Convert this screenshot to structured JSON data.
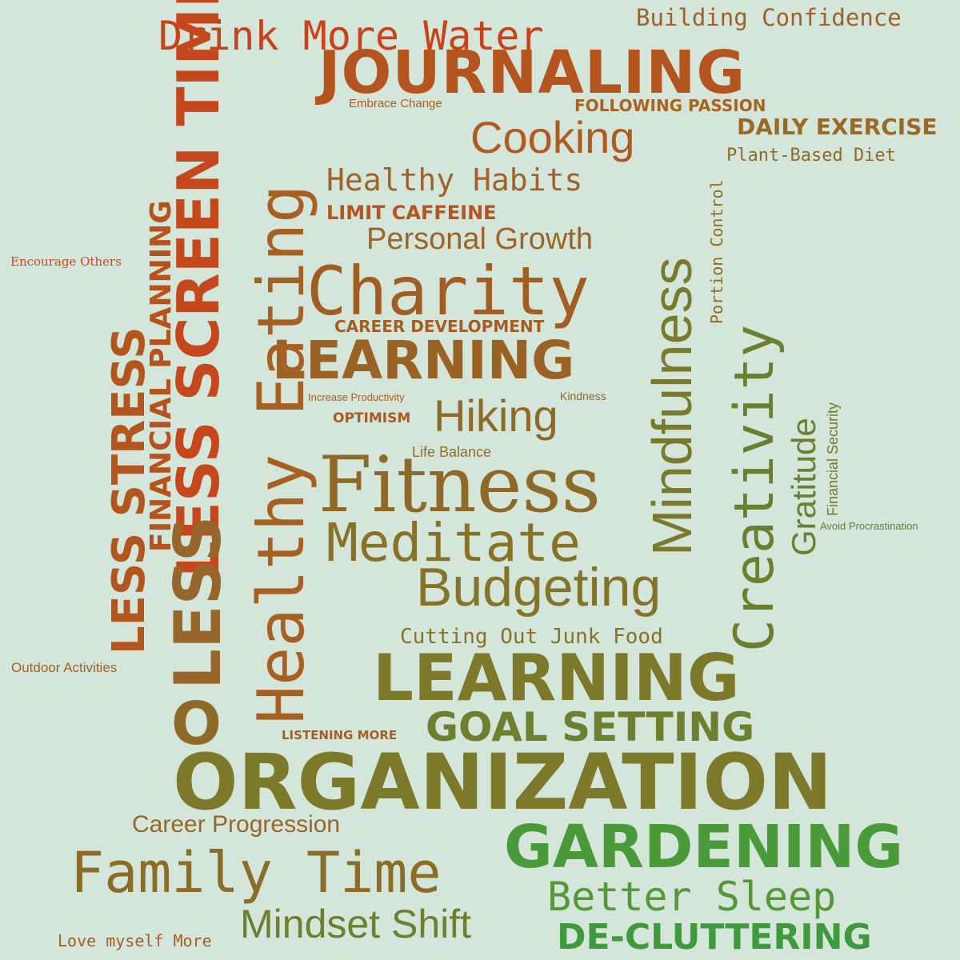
{
  "words": [
    {
      "text": "Building Confidence",
      "color": "#a0602a"
    },
    {
      "text": "Drink More Water",
      "color": "#c8421a"
    },
    {
      "text": "JOURNALING",
      "color": "#b4541e"
    },
    {
      "text": "Embrace Change",
      "color": "#b05a22"
    },
    {
      "text": "FOLLOWING PASSION",
      "color": "#a86222"
    },
    {
      "text": "Cooking",
      "color": "#b05a22"
    },
    {
      "text": "DAILY EXERCISE",
      "color": "#986a26"
    },
    {
      "text": "Plant-Based Diet",
      "color": "#8c6c2a"
    },
    {
      "text": "Healthy Habits",
      "color": "#a0622a"
    },
    {
      "text": "LIMIT CAFFEINE",
      "color": "#b4541e"
    },
    {
      "text": "Personal Growth",
      "color": "#9c6426"
    },
    {
      "text": "Encourage Others",
      "color": "#c84a1c"
    },
    {
      "text": "Charity",
      "color": "#a05e24"
    },
    {
      "text": "CAREER DEVELOPMENT",
      "color": "#a25e24"
    },
    {
      "text": "LEARNING",
      "color": "#9a6224"
    },
    {
      "text": "Increase Productivity",
      "color": "#a25e24"
    },
    {
      "text": "Kindness",
      "color": "#8e6a28"
    },
    {
      "text": "OPTIMISM",
      "color": "#a85a22"
    },
    {
      "text": "Hiking",
      "color": "#8e6a28"
    },
    {
      "text": "Life Balance",
      "color": "#927028"
    },
    {
      "text": "Fitness",
      "color": "#8e6a28"
    },
    {
      "text": "Meditate",
      "color": "#887228"
    },
    {
      "text": "Budgeting",
      "color": "#84742a"
    },
    {
      "text": "Cutting Out Junk Food",
      "color": "#84742a"
    },
    {
      "text": "Avoid Procrastination",
      "color": "#6a8030"
    },
    {
      "text": "Outdoor Activities",
      "color": "#a66222"
    },
    {
      "text": "LEARNING",
      "color": "#7c7a2a"
    },
    {
      "text": "LISTENING MORE",
      "color": "#a46022"
    },
    {
      "text": "GOAL SETTING",
      "color": "#6e8030"
    },
    {
      "text": "ORGANIZATION",
      "color": "#7c7a2a"
    },
    {
      "text": "Career Progression",
      "color": "#986626"
    },
    {
      "text": "GARDENING",
      "color": "#4a9a3a"
    },
    {
      "text": "Family Time",
      "color": "#8a6e28"
    },
    {
      "text": "Better Sleep",
      "color": "#54983a"
    },
    {
      "text": "Mindset Shift",
      "color": "#6e8030"
    },
    {
      "text": "Love myself More",
      "color": "#a06026"
    },
    {
      "text": "DE-CLUTTERING",
      "color": "#3e9a3c"
    },
    {
      "text": "Healthy Eating",
      "color": "#a66022"
    },
    {
      "text": "LESS SCREEN TIME",
      "color": "#c4481c"
    },
    {
      "text": "LESS STRESS",
      "color": "#b2561e"
    },
    {
      "text": "FINANCIAL PLANNING",
      "color": "#b6521e"
    },
    {
      "text": "Mindfulness",
      "color": "#7a7a2c"
    },
    {
      "text": "Portion Control",
      "color": "#8e6e28"
    },
    {
      "text": "Creativity",
      "color": "#6a8030"
    },
    {
      "text": "Gratitude",
      "color": "#6a8030"
    },
    {
      "text": "Financial Security",
      "color": "#6e7e2e"
    },
    {
      "text": "LESS",
      "color": "#96662a"
    },
    {
      "text": "O",
      "color": "#8e6a28"
    }
  ]
}
